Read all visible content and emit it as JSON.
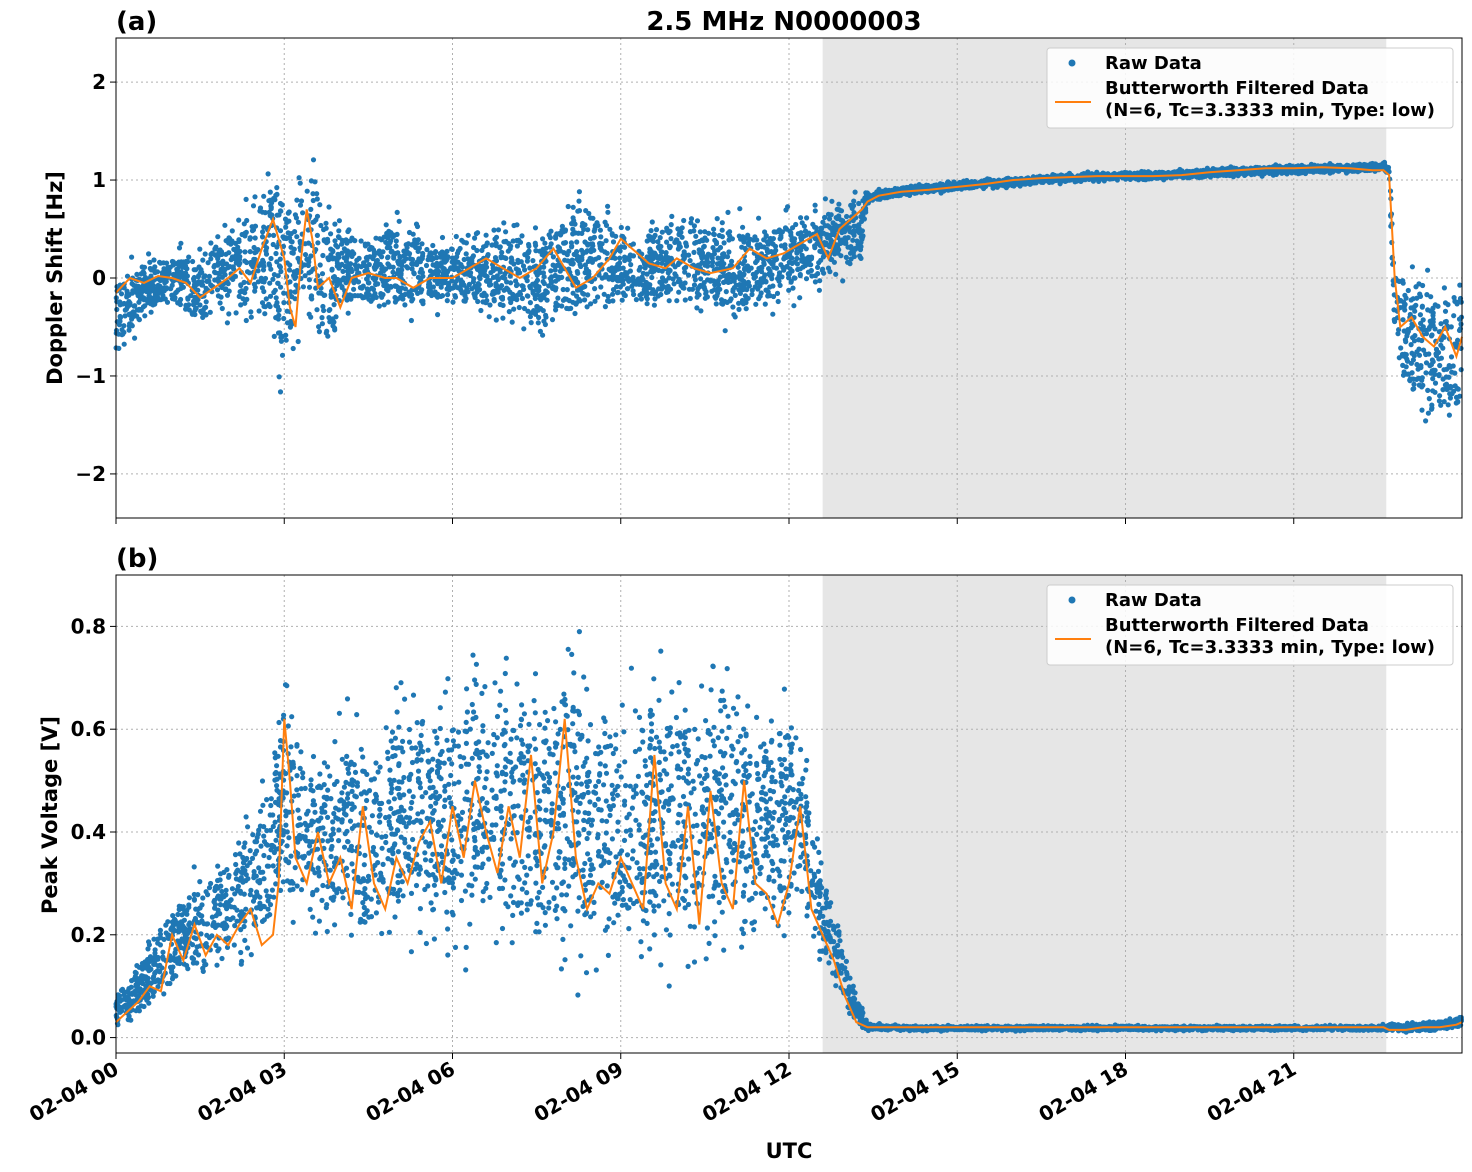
{
  "chart_data": [
    {
      "type": "scatter",
      "panel_label": "(a)",
      "title": "2.5 MHz N0000003",
      "xlabel": "",
      "ylabel": "Doppler Shift [Hz]",
      "xlim": [
        0,
        24
      ],
      "ylim": [
        -2.45,
        2.45
      ],
      "yticks": [
        -2,
        -1,
        0,
        1,
        2
      ],
      "ytick_labels": [
        "−2",
        "−1",
        "0",
        "1",
        "2"
      ],
      "grid": true,
      "legend_position": "top-right",
      "shaded_region": {
        "x_start": 12.6,
        "x_end": 22.65,
        "color": "#e6e6e6"
      },
      "series": [
        {
          "name": "Raw Data",
          "style": "scatter",
          "color": "#1f77b4",
          "envelope": {
            "x": [
              0,
              0.5,
              1,
              1.5,
              2,
              2.5,
              2.8,
              3,
              3.2,
              3.5,
              3.8,
              4,
              4.5,
              5,
              5.5,
              6,
              6.5,
              7,
              7.5,
              8,
              8.5,
              9,
              9.5,
              10,
              10.5,
              11,
              11.5,
              12,
              12.5,
              12.8,
              13,
              13.3,
              13.4,
              14,
              15,
              16,
              17,
              18,
              19,
              20,
              21,
              22,
              22.6,
              22.7,
              22.8,
              23,
              23.5,
              24
            ],
            "upper": [
              0.2,
              0.3,
              0.35,
              0.5,
              0.7,
              1.1,
              1.6,
              1.4,
              1.3,
              1.6,
              1.0,
              0.7,
              0.6,
              0.9,
              0.6,
              0.5,
              0.6,
              0.8,
              0.7,
              0.9,
              1.0,
              0.7,
              0.7,
              0.8,
              0.8,
              0.8,
              0.7,
              0.8,
              0.8,
              0.9,
              0.95,
              1.0,
              0.9,
              0.95,
              1.0,
              1.05,
              1.08,
              1.1,
              1.12,
              1.15,
              1.17,
              1.18,
              1.2,
              1.2,
              0.5,
              0.3,
              0.2,
              0.3
            ],
            "lower": [
              -1.0,
              -0.5,
              -0.4,
              -0.7,
              -0.6,
              -0.6,
              -1.2,
              -1.5,
              -0.9,
              -1.0,
              -1.2,
              -0.5,
              -0.5,
              -0.6,
              -0.5,
              -0.4,
              -0.6,
              -0.6,
              -0.8,
              -0.7,
              -0.6,
              -0.5,
              -0.5,
              -0.4,
              -0.5,
              -0.7,
              -0.5,
              -0.4,
              -0.2,
              0.0,
              -0.1,
              0.0,
              0.75,
              0.82,
              0.88,
              0.92,
              0.97,
              0.98,
              1.0,
              1.02,
              1.05,
              1.06,
              1.08,
              1.0,
              -1.0,
              -1.5,
              -1.8,
              -1.8
            ]
          }
        },
        {
          "name": "Butterworth Filtered Data\n(N=6, Tc=3.3333 min, Type: low)",
          "style": "line",
          "color": "#ff7f0e",
          "x": [
            0,
            0.25,
            0.5,
            0.75,
            1,
            1.25,
            1.5,
            1.75,
            2,
            2.2,
            2.4,
            2.6,
            2.8,
            2.9,
            3,
            3.1,
            3.2,
            3.3,
            3.4,
            3.5,
            3.6,
            3.8,
            4,
            4.2,
            4.5,
            4.8,
            5,
            5.3,
            5.6,
            6,
            6.3,
            6.6,
            6.9,
            7.2,
            7.5,
            7.8,
            8,
            8.2,
            8.5,
            8.8,
            9,
            9.2,
            9.5,
            9.8,
            10,
            10.3,
            10.6,
            11,
            11.3,
            11.6,
            11.9,
            12.2,
            12.5,
            12.7,
            12.9,
            13.1,
            13.3,
            13.4,
            13.6,
            14,
            14.5,
            15,
            15.5,
            16,
            16.5,
            17,
            17.5,
            18,
            18.5,
            19,
            19.5,
            20,
            20.5,
            21,
            21.5,
            22,
            22.4,
            22.6,
            22.7,
            22.8,
            22.9,
            23.1,
            23.3,
            23.5,
            23.7,
            23.9,
            24
          ],
          "y": [
            -0.15,
            0.0,
            -0.05,
            0.02,
            0.0,
            -0.05,
            -0.2,
            -0.1,
            0.0,
            0.1,
            -0.05,
            0.3,
            0.6,
            0.4,
            0.2,
            -0.3,
            -0.5,
            0.2,
            0.7,
            0.4,
            -0.1,
            0.0,
            -0.3,
            0.0,
            0.05,
            0.0,
            0.0,
            -0.1,
            0.0,
            0.0,
            0.1,
            0.2,
            0.1,
            0.0,
            0.1,
            0.3,
            0.1,
            -0.1,
            0.0,
            0.2,
            0.4,
            0.3,
            0.15,
            0.1,
            0.2,
            0.1,
            0.05,
            0.1,
            0.3,
            0.2,
            0.25,
            0.35,
            0.45,
            0.2,
            0.5,
            0.6,
            0.7,
            0.78,
            0.84,
            0.88,
            0.9,
            0.93,
            0.96,
            1.0,
            1.02,
            1.03,
            1.04,
            1.04,
            1.04,
            1.05,
            1.08,
            1.1,
            1.12,
            1.12,
            1.13,
            1.12,
            1.1,
            1.1,
            1.05,
            0.0,
            -0.5,
            -0.4,
            -0.6,
            -0.7,
            -0.5,
            -0.8,
            -0.6
          ]
        }
      ]
    },
    {
      "type": "scatter",
      "panel_label": "(b)",
      "xlabel": "UTC",
      "ylabel": "Peak Voltage [V]",
      "xlim": [
        0,
        24
      ],
      "ylim": [
        -0.03,
        0.9
      ],
      "yticks": [
        0.0,
        0.2,
        0.4,
        0.6,
        0.8
      ],
      "ytick_labels": [
        "0.0",
        "0.2",
        "0.4",
        "0.6",
        "0.8"
      ],
      "xticks": [
        0,
        3,
        6,
        9,
        12,
        15,
        18,
        21
      ],
      "xtick_labels": [
        "02-04 00",
        "02-04 03",
        "02-04 06",
        "02-04 09",
        "02-04 12",
        "02-04 15",
        "02-04 18",
        "02-04 21"
      ],
      "grid": true,
      "legend_position": "top-right",
      "shaded_region": {
        "x_start": 12.6,
        "x_end": 22.65,
        "color": "#e6e6e6"
      },
      "series": [
        {
          "name": "Raw Data",
          "style": "scatter",
          "color": "#1f77b4",
          "envelope": {
            "x": [
              0,
              0.5,
              1,
              1.5,
              2,
              2.5,
              2.8,
              3,
              3.3,
              3.6,
              4,
              4.5,
              5,
              5.5,
              6,
              6.5,
              7,
              7.5,
              8,
              8.5,
              9,
              9.5,
              10,
              10.5,
              11,
              11.5,
              12,
              12.3,
              12.6,
              12.9,
              13.2,
              13.4,
              14,
              16,
              18,
              20,
              22,
              22.4,
              22.6,
              23,
              23.5,
              24
            ],
            "upper": [
              0.1,
              0.18,
              0.3,
              0.35,
              0.4,
              0.5,
              0.6,
              0.82,
              0.65,
              0.6,
              0.7,
              0.65,
              0.75,
              0.78,
              0.75,
              0.82,
              0.8,
              0.8,
              0.85,
              0.8,
              0.7,
              0.8,
              0.75,
              0.8,
              0.8,
              0.7,
              0.75,
              0.6,
              0.4,
              0.25,
              0.1,
              0.03,
              0.025,
              0.025,
              0.025,
              0.025,
              0.025,
              0.025,
              0.03,
              0.03,
              0.035,
              0.045
            ],
            "lower": [
              0.01,
              0.03,
              0.06,
              0.08,
              0.1,
              0.12,
              0.14,
              0.15,
              0.15,
              0.12,
              0.1,
              0.09,
              0.12,
              0.1,
              0.08,
              0.08,
              0.1,
              0.08,
              0.07,
              0.08,
              0.09,
              0.08,
              0.08,
              0.09,
              0.1,
              0.11,
              0.12,
              0.13,
              0.1,
              0.04,
              0.01,
              0.012,
              0.012,
              0.012,
              0.012,
              0.012,
              0.012,
              0.012,
              0.01,
              0.008,
              0.01,
              0.015
            ]
          }
        },
        {
          "name": "Butterworth Filtered Data\n(N=6, Tc=3.3333 min, Type: low)",
          "style": "line",
          "color": "#ff7f0e",
          "x": [
            0,
            0.2,
            0.4,
            0.6,
            0.8,
            1,
            1.2,
            1.4,
            1.6,
            1.8,
            2,
            2.2,
            2.4,
            2.6,
            2.8,
            2.9,
            3,
            3.1,
            3.2,
            3.4,
            3.6,
            3.8,
            4,
            4.2,
            4.4,
            4.6,
            4.8,
            5,
            5.2,
            5.4,
            5.6,
            5.8,
            6,
            6.2,
            6.4,
            6.6,
            6.8,
            7,
            7.2,
            7.4,
            7.6,
            7.8,
            8,
            8.2,
            8.4,
            8.6,
            8.8,
            9,
            9.2,
            9.4,
            9.6,
            9.8,
            10,
            10.2,
            10.4,
            10.6,
            10.8,
            11,
            11.2,
            11.4,
            11.6,
            11.8,
            12,
            12.2,
            12.4,
            12.6,
            12.8,
            13,
            13.2,
            13.4,
            13.6,
            14,
            16,
            18,
            20,
            22,
            22.4,
            22.6,
            22.7,
            23,
            23.3,
            23.6,
            23.9,
            24
          ],
          "y": [
            0.03,
            0.05,
            0.07,
            0.1,
            0.09,
            0.2,
            0.15,
            0.22,
            0.16,
            0.2,
            0.18,
            0.22,
            0.25,
            0.18,
            0.2,
            0.3,
            0.62,
            0.5,
            0.35,
            0.3,
            0.4,
            0.3,
            0.35,
            0.25,
            0.45,
            0.3,
            0.25,
            0.35,
            0.3,
            0.38,
            0.42,
            0.3,
            0.45,
            0.35,
            0.5,
            0.4,
            0.32,
            0.45,
            0.35,
            0.55,
            0.3,
            0.4,
            0.62,
            0.35,
            0.25,
            0.3,
            0.28,
            0.35,
            0.3,
            0.25,
            0.55,
            0.3,
            0.25,
            0.45,
            0.22,
            0.48,
            0.3,
            0.25,
            0.5,
            0.3,
            0.28,
            0.22,
            0.3,
            0.45,
            0.25,
            0.2,
            0.15,
            0.08,
            0.03,
            0.02,
            0.02,
            0.02,
            0.02,
            0.02,
            0.02,
            0.02,
            0.02,
            0.02,
            0.015,
            0.015,
            0.02,
            0.02,
            0.025,
            0.03
          ]
        }
      ]
    }
  ]
}
